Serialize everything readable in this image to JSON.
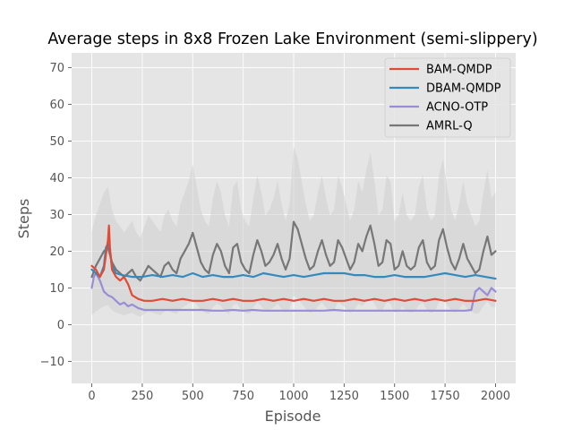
{
  "chart_data": {
    "type": "line",
    "title": "Average steps in 8x8 Frozen Lake Environment (semi-slippery)",
    "xlabel": "Episode",
    "ylabel": "Steps",
    "xlim": [
      -100,
      2100
    ],
    "ylim": [
      -16,
      74
    ],
    "x_ticks": [
      0,
      250,
      500,
      750,
      1000,
      1250,
      1500,
      1750,
      2000
    ],
    "y_ticks": [
      -10,
      0,
      10,
      20,
      30,
      40,
      50,
      60,
      70
    ],
    "grid": true,
    "legend_position": "top-right",
    "background_color": "#e5e5e5",
    "grid_color": "#ffffff",
    "band_color": "#d0d0d0",
    "series": [
      {
        "name": "BAM-QMDP",
        "color": "#e24a33",
        "x": [
          0,
          20,
          40,
          60,
          70,
          80,
          85,
          90,
          100,
          120,
          140,
          160,
          180,
          200,
          230,
          260,
          300,
          350,
          400,
          450,
          500,
          550,
          600,
          650,
          700,
          750,
          800,
          850,
          900,
          950,
          1000,
          1050,
          1100,
          1150,
          1200,
          1250,
          1300,
          1350,
          1400,
          1450,
          1500,
          1550,
          1600,
          1650,
          1700,
          1750,
          1800,
          1850,
          1900,
          1950,
          2000
        ],
        "y": [
          16,
          15,
          13,
          15,
          19,
          23,
          27,
          21,
          15,
          13,
          12,
          13,
          11,
          8,
          7,
          6.5,
          6.5,
          7,
          6.5,
          7,
          6.5,
          6.5,
          7,
          6.5,
          7,
          6.5,
          6.5,
          7,
          6.5,
          7,
          6.5,
          7,
          6.5,
          7,
          6.5,
          6.5,
          7,
          6.5,
          7,
          6.5,
          7,
          6.5,
          7,
          6.5,
          7,
          6.5,
          7,
          6.5,
          6.5,
          7,
          6.5
        ]
      },
      {
        "name": "DBAM-QMDP",
        "color": "#348abd",
        "x": [
          0,
          20,
          40,
          60,
          70,
          80,
          90,
          100,
          120,
          150,
          200,
          250,
          300,
          350,
          400,
          450,
          500,
          550,
          600,
          650,
          700,
          750,
          800,
          850,
          900,
          950,
          1000,
          1050,
          1100,
          1150,
          1200,
          1250,
          1300,
          1350,
          1400,
          1450,
          1500,
          1550,
          1600,
          1650,
          1700,
          1750,
          1800,
          1850,
          1900,
          1950,
          2000
        ],
        "y": [
          15,
          14,
          13,
          16,
          21,
          22,
          20,
          16,
          14,
          13.5,
          13,
          13,
          13.5,
          13,
          13.5,
          13,
          14,
          13,
          13.5,
          13,
          13,
          13.5,
          13,
          14,
          13.5,
          13,
          13.5,
          13,
          13.5,
          14,
          14,
          14,
          13.5,
          13.5,
          13,
          13,
          13.5,
          13,
          13,
          13,
          13.5,
          14,
          13.5,
          13,
          13.5,
          13,
          12.5
        ]
      },
      {
        "name": "ACNO-OTP",
        "color": "#988ed5",
        "x": [
          0,
          10,
          20,
          40,
          60,
          80,
          100,
          120,
          140,
          160,
          180,
          200,
          230,
          260,
          300,
          350,
          400,
          450,
          500,
          550,
          600,
          650,
          700,
          750,
          800,
          850,
          900,
          950,
          1000,
          1050,
          1100,
          1150,
          1200,
          1250,
          1300,
          1350,
          1400,
          1450,
          1500,
          1550,
          1600,
          1650,
          1700,
          1750,
          1800,
          1850,
          1880,
          1900,
          1920,
          1940,
          1960,
          1980,
          2000
        ],
        "y": [
          10,
          13,
          14,
          12,
          9,
          8,
          7.5,
          6.5,
          5.5,
          6,
          5,
          5.5,
          4.5,
          4,
          4,
          4,
          4,
          4,
          4,
          4,
          3.8,
          3.8,
          4,
          3.8,
          4,
          3.8,
          3.8,
          3.8,
          3.8,
          3.8,
          3.8,
          3.8,
          4,
          3.8,
          3.8,
          3.8,
          3.8,
          3.8,
          3.8,
          3.8,
          3.8,
          3.8,
          3.8,
          3.8,
          3.8,
          3.8,
          4,
          9,
          10,
          9,
          8,
          10,
          9
        ]
      },
      {
        "name": "AMRL-Q",
        "color": "#777777",
        "x": [
          0,
          20,
          40,
          60,
          80,
          100,
          120,
          140,
          160,
          180,
          200,
          220,
          240,
          260,
          280,
          300,
          320,
          340,
          360,
          380,
          400,
          420,
          440,
          460,
          480,
          500,
          520,
          540,
          560,
          580,
          600,
          620,
          640,
          660,
          680,
          700,
          720,
          740,
          760,
          780,
          800,
          820,
          840,
          860,
          880,
          900,
          920,
          940,
          960,
          980,
          1000,
          1020,
          1040,
          1060,
          1080,
          1100,
          1120,
          1140,
          1160,
          1180,
          1200,
          1220,
          1240,
          1260,
          1280,
          1300,
          1320,
          1340,
          1360,
          1380,
          1400,
          1420,
          1440,
          1460,
          1480,
          1500,
          1520,
          1540,
          1560,
          1580,
          1600,
          1620,
          1640,
          1660,
          1680,
          1700,
          1720,
          1740,
          1760,
          1780,
          1800,
          1820,
          1840,
          1860,
          1880,
          1900,
          1920,
          1940,
          1960,
          1980,
          2000
        ],
        "y": [
          13,
          16,
          18,
          20,
          21,
          17,
          15,
          14,
          13,
          14,
          15,
          13,
          12,
          14,
          16,
          15,
          14,
          13,
          16,
          17,
          15,
          14,
          18,
          20,
          22,
          25,
          21,
          17,
          15,
          14,
          19,
          22,
          20,
          16,
          14,
          21,
          22,
          17,
          15,
          14,
          19,
          23,
          20,
          16,
          17,
          19,
          22,
          18,
          15,
          18,
          28,
          26,
          22,
          18,
          15,
          16,
          20,
          23,
          19,
          16,
          17,
          23,
          21,
          18,
          15,
          17,
          22,
          20,
          24,
          27,
          22,
          16,
          17,
          23,
          22,
          15,
          16,
          20,
          16,
          15,
          16,
          21,
          23,
          17,
          15,
          16,
          23,
          26,
          21,
          17,
          15,
          18,
          22,
          18,
          16,
          14,
          15,
          20,
          24,
          19,
          20
        ]
      }
    ]
  }
}
